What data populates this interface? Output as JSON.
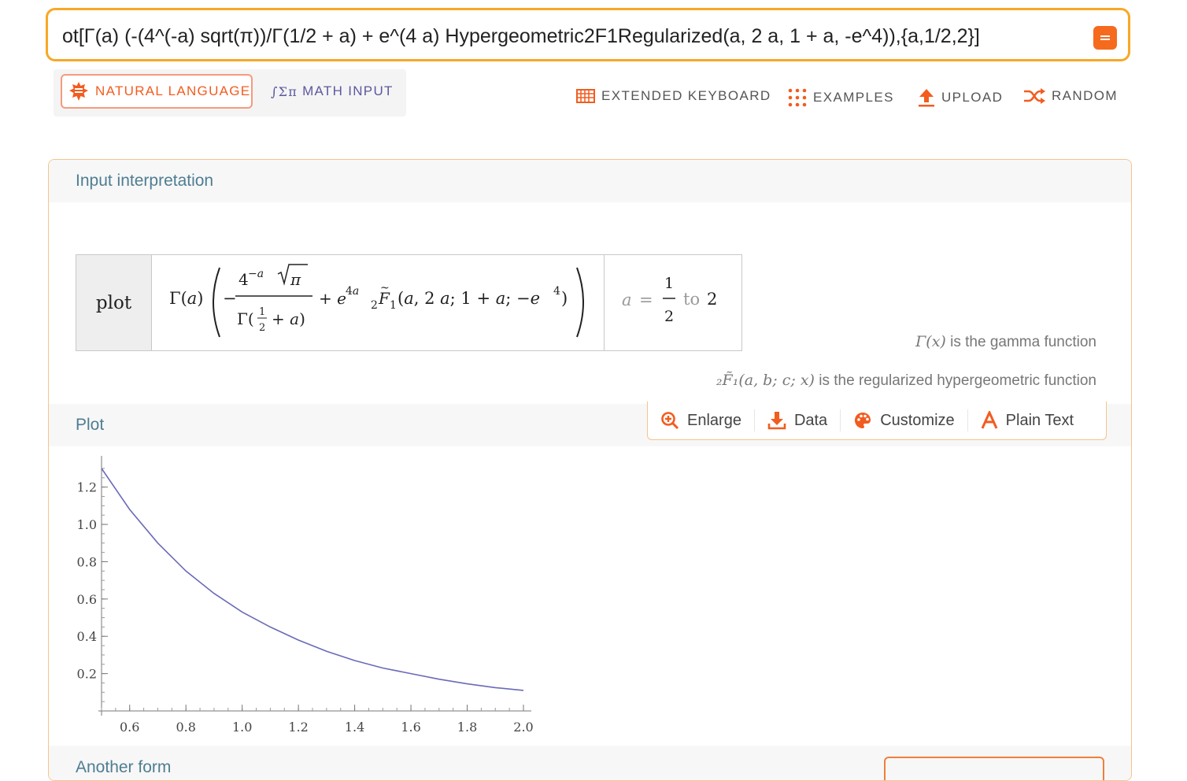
{
  "search": {
    "query": "ot[Γ(a) (-(4^(-a) sqrt(π))/Γ(1/2 + a) + e^(4 a) Hypergeometric2F1Regularized(a, 2 a, 1 + a, -e^4)),{a,1/2,2}]"
  },
  "modes": {
    "natural_language": "NATURAL LANGUAGE",
    "math_input": "MATH INPUT"
  },
  "toolbar": {
    "extended_keyboard": "EXTENDED KEYBOARD",
    "examples": "EXAMPLES",
    "upload": "UPLOAD",
    "random": "RANDOM"
  },
  "input_pod": {
    "title": "Input interpretation",
    "command": "plot",
    "range_to": "to",
    "range_end": "2",
    "note_gamma_symbol": "Γ(x)",
    "note_gamma_text": "is the gamma function",
    "note_hyper_symbol": "₂F̃₁(a, b; c; x)",
    "note_hyper_text": "is the regularized hypergeometric function"
  },
  "plot_pod": {
    "title": "Plot",
    "tools": {
      "enlarge": "Enlarge",
      "data": "Data",
      "customize": "Customize",
      "plain_text": "Plain Text"
    }
  },
  "next_pod": {
    "title": "Another form"
  },
  "colors": {
    "accent": "#f56a1d",
    "border": "#f8a825",
    "curve": "#6a6ab8",
    "pod_title": "#4e7d92"
  },
  "chart_data": {
    "type": "line",
    "x_ticks": [
      "0.6",
      "0.8",
      "1.0",
      "1.2",
      "1.4",
      "1.6",
      "1.8",
      "2.0"
    ],
    "y_ticks": [
      "0.2",
      "0.4",
      "0.6",
      "0.8",
      "1.0",
      "1.2"
    ],
    "xlim": [
      0.5,
      2.0
    ],
    "ylim": [
      0.0,
      1.3
    ],
    "series": [
      {
        "x": [
          0.5,
          0.6,
          0.7,
          0.8,
          0.9,
          1.0,
          1.1,
          1.2,
          1.3,
          1.4,
          1.5,
          1.6,
          1.7,
          1.8,
          1.9,
          2.0
        ],
        "y": [
          1.3,
          1.08,
          0.9,
          0.75,
          0.63,
          0.53,
          0.45,
          0.38,
          0.32,
          0.27,
          0.23,
          0.2,
          0.17,
          0.145,
          0.125,
          0.11
        ]
      }
    ]
  }
}
